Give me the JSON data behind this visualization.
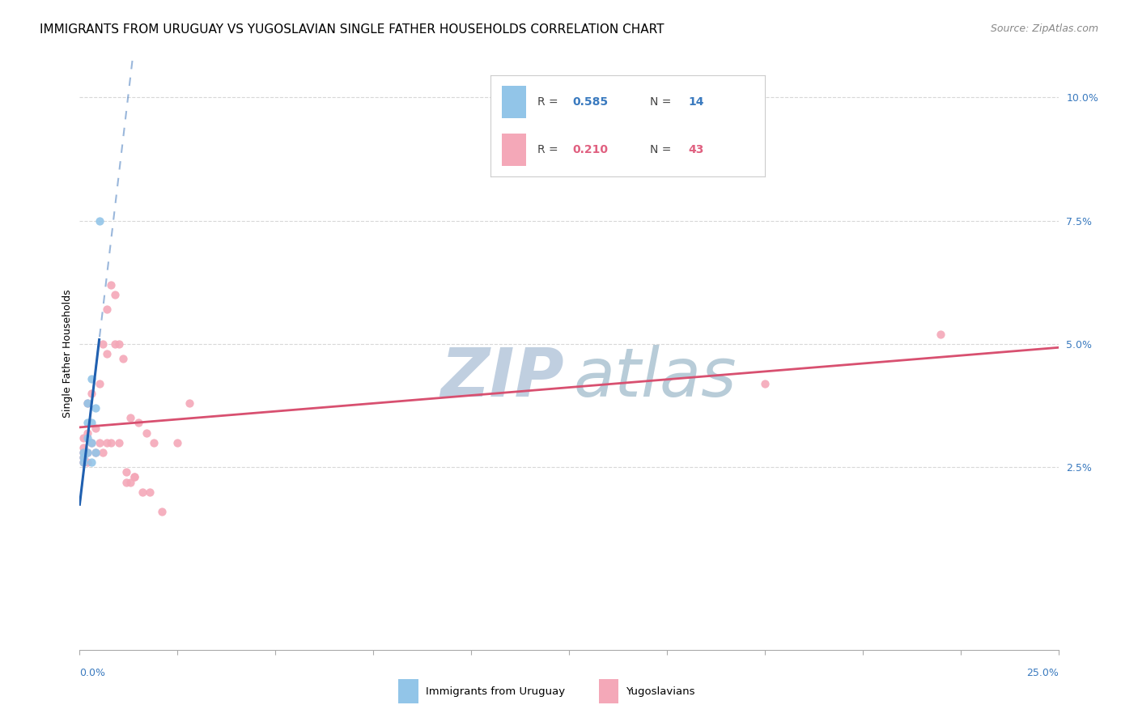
{
  "title": "IMMIGRANTS FROM URUGUAY VS YUGOSLAVIAN SINGLE FATHER HOUSEHOLDS CORRELATION CHART",
  "source": "Source: ZipAtlas.com",
  "ylabel": "Single Father Households",
  "right_yticks": [
    0.025,
    0.05,
    0.075,
    0.1
  ],
  "right_yticklabels": [
    "2.5%",
    "5.0%",
    "7.5%",
    "10.0%"
  ],
  "xmin": 0.0,
  "xmax": 0.25,
  "ymin": -0.012,
  "ymax": 0.108,
  "uruguay_x": [
    0.001,
    0.001,
    0.001,
    0.002,
    0.002,
    0.002,
    0.002,
    0.003,
    0.003,
    0.003,
    0.003,
    0.004,
    0.004,
    0.005
  ],
  "uruguay_y": [
    0.026,
    0.027,
    0.028,
    0.028,
    0.031,
    0.034,
    0.038,
    0.026,
    0.03,
    0.034,
    0.043,
    0.028,
    0.037,
    0.075
  ],
  "yugoslavian_x": [
    0.001,
    0.001,
    0.001,
    0.001,
    0.001,
    0.002,
    0.002,
    0.002,
    0.002,
    0.003,
    0.003,
    0.004,
    0.004,
    0.005,
    0.005,
    0.006,
    0.006,
    0.007,
    0.007,
    0.007,
    0.008,
    0.008,
    0.009,
    0.009,
    0.01,
    0.01,
    0.011,
    0.012,
    0.012,
    0.013,
    0.013,
    0.014,
    0.014,
    0.015,
    0.016,
    0.017,
    0.018,
    0.019,
    0.021,
    0.025,
    0.028,
    0.175,
    0.22
  ],
  "yugoslavian_y": [
    0.026,
    0.027,
    0.028,
    0.029,
    0.031,
    0.026,
    0.028,
    0.032,
    0.038,
    0.03,
    0.04,
    0.028,
    0.033,
    0.03,
    0.042,
    0.028,
    0.05,
    0.03,
    0.048,
    0.057,
    0.03,
    0.062,
    0.05,
    0.06,
    0.03,
    0.05,
    0.047,
    0.022,
    0.024,
    0.022,
    0.035,
    0.023,
    0.023,
    0.034,
    0.02,
    0.032,
    0.02,
    0.03,
    0.016,
    0.03,
    0.038,
    0.042,
    0.052
  ],
  "uruguay_color": "#92c5e8",
  "yugoslavian_color": "#f4a8b8",
  "uruguay_trend_color": "#2060b0",
  "yugoslavian_trend_color": "#d85070",
  "title_fontsize": 11,
  "source_fontsize": 9,
  "axis_label_fontsize": 9,
  "tick_fontsize": 9,
  "watermark_zip_color": "#c0cfe0",
  "watermark_atlas_color": "#b8ccd8",
  "watermark_fontsize": 60,
  "legend_r1": "0.585",
  "legend_n1": "14",
  "legend_r2": "0.210",
  "legend_n2": "43",
  "legend_color1": "#3a7abf",
  "legend_color2": "#e06080"
}
